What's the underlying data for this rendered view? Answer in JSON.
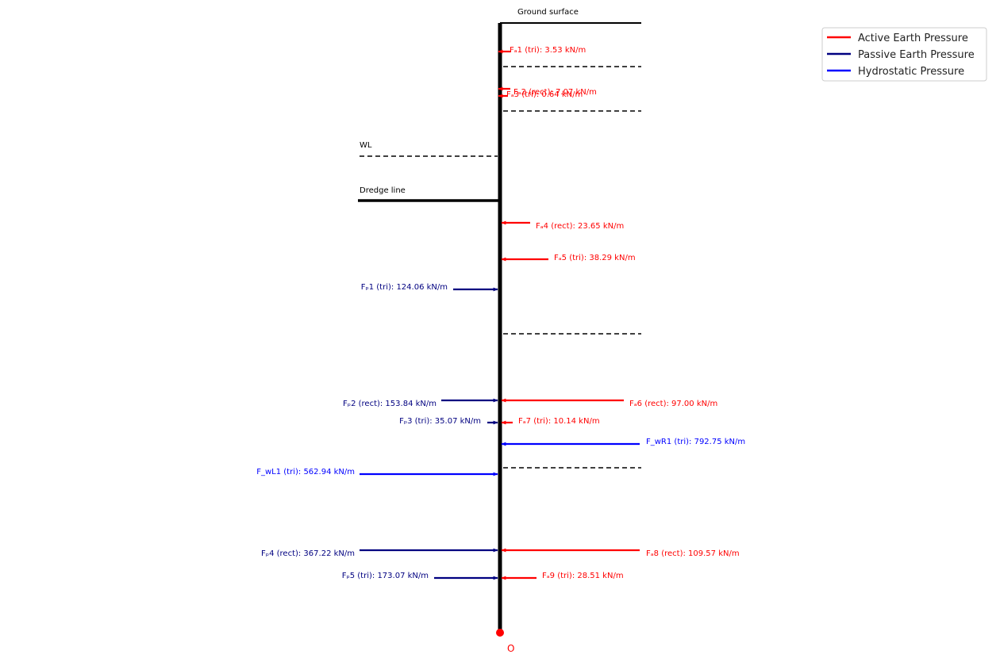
{
  "colors": {
    "active": "#ff0000",
    "passive": "#000080",
    "hydro": "#0000ff",
    "wall": "#000000",
    "origin": "#ff0000"
  },
  "labels": {
    "ground_surface": "Ground surface",
    "water_level": "WL",
    "dredge_line": "Dredge line",
    "origin": "O"
  },
  "legend": {
    "placement": "top-right",
    "entries": [
      {
        "label": "Active Earth Pressure",
        "color": "#ff0000"
      },
      {
        "label": "Passive Earth Pressure",
        "color": "#000080"
      },
      {
        "label": "Hydrostatic Pressure",
        "color": "#0000ff"
      }
    ]
  },
  "forces": [
    {
      "id": "fa1",
      "label": "Fₐ1 (tri): 3.53 kN/m",
      "type": "active",
      "value": 3.53
    },
    {
      "id": "fa2",
      "label": "Fₐ2 (rect): 7.07 kN/m",
      "type": "active",
      "value": 7.07
    },
    {
      "id": "fa3",
      "label": "Fₐ3 (tri): 0.64 kN/m",
      "type": "active",
      "value": 0.64
    },
    {
      "id": "fa4",
      "label": "Fₐ4 (rect): 23.65 kN/m",
      "type": "active",
      "value": 23.65
    },
    {
      "id": "fa5",
      "label": "Fₐ5 (tri): 38.29 kN/m",
      "type": "active",
      "value": 38.29
    },
    {
      "id": "fp1",
      "label": "Fₚ1 (tri): 124.06 kN/m",
      "type": "passive",
      "value": 124.06
    },
    {
      "id": "fp2",
      "label": "Fₚ2 (rect): 153.84 kN/m",
      "type": "passive",
      "value": 153.84
    },
    {
      "id": "fa6",
      "label": "Fₐ6 (rect): 97.00 kN/m",
      "type": "active",
      "value": 97.0
    },
    {
      "id": "fp3",
      "label": "Fₚ3 (tri): 35.07 kN/m",
      "type": "passive",
      "value": 35.07
    },
    {
      "id": "fa7",
      "label": "Fₐ7 (tri): 10.14 kN/m",
      "type": "active",
      "value": 10.14
    },
    {
      "id": "fwr1",
      "label": "F_wR1 (tri): 792.75 kN/m",
      "type": "hydro",
      "value": 792.75
    },
    {
      "id": "fwl1",
      "label": "F_wL1 (tri): 562.94 kN/m",
      "type": "hydro",
      "value": 562.94
    },
    {
      "id": "fp4",
      "label": "Fₚ4 (rect): 367.22 kN/m",
      "type": "passive",
      "value": 367.22
    },
    {
      "id": "fa8",
      "label": "Fₐ8 (rect): 109.57 kN/m",
      "type": "active",
      "value": 109.57
    },
    {
      "id": "fp5",
      "label": "Fₚ5 (tri): 173.07 kN/m",
      "type": "passive",
      "value": 173.07
    },
    {
      "id": "fa9",
      "label": "Fₐ9 (tri): 28.51 kN/m",
      "type": "active",
      "value": 28.51
    }
  ]
}
